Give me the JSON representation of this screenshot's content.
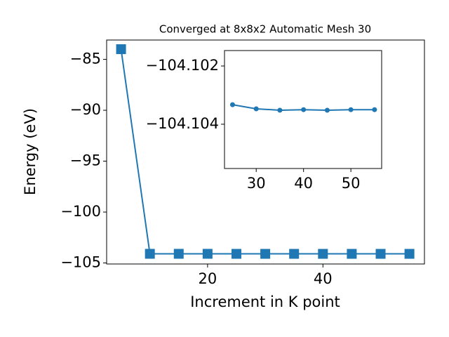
{
  "chart_data": [
    {
      "type": "line",
      "title": "Converged at 8x8x2 Automatic Mesh 30",
      "x_label": "Increment in K point",
      "y_label": "Energy (eV)",
      "x": [
        5,
        10,
        15,
        20,
        25,
        30,
        35,
        40,
        45,
        50,
        55
      ],
      "series": [
        {
          "color": "#1f77b4",
          "marker": "square",
          "values": [
            -84.0,
            -104.1,
            -104.1,
            -104.1,
            -104.1033,
            -104.1035,
            -104.1035,
            -104.1035,
            -104.1035,
            -104.1035,
            -104.1035
          ]
        }
      ],
      "xlim": [
        2.5,
        57.6
      ],
      "ylim": [
        -105.1,
        -83.1
      ],
      "xticks": [
        20,
        40
      ],
      "yticks": [
        {
          "value": -85,
          "label": "−85"
        },
        {
          "value": -90,
          "label": "−90"
        },
        {
          "value": -95,
          "label": "−95"
        },
        {
          "value": -100,
          "label": "−100"
        },
        {
          "value": -105,
          "label": "−105"
        }
      ]
    },
    {
      "type": "line",
      "x": [
        25,
        30,
        35,
        40,
        45,
        50,
        55
      ],
      "series": [
        {
          "color": "#1f77b4",
          "marker": "circle",
          "values": [
            -104.10333,
            -104.10347,
            -104.10352,
            -104.1035,
            -104.10352,
            -104.1035,
            -104.1035
          ]
        }
      ],
      "xlim": [
        23.3,
        56.5
      ],
      "ylim": [
        -104.10552,
        -104.10147
      ],
      "xticks": [
        30,
        40,
        50
      ],
      "yticks": [
        {
          "value": -104.104,
          "label": "−104.104"
        },
        {
          "value": -104.102,
          "label": "−104.102"
        }
      ]
    }
  ]
}
